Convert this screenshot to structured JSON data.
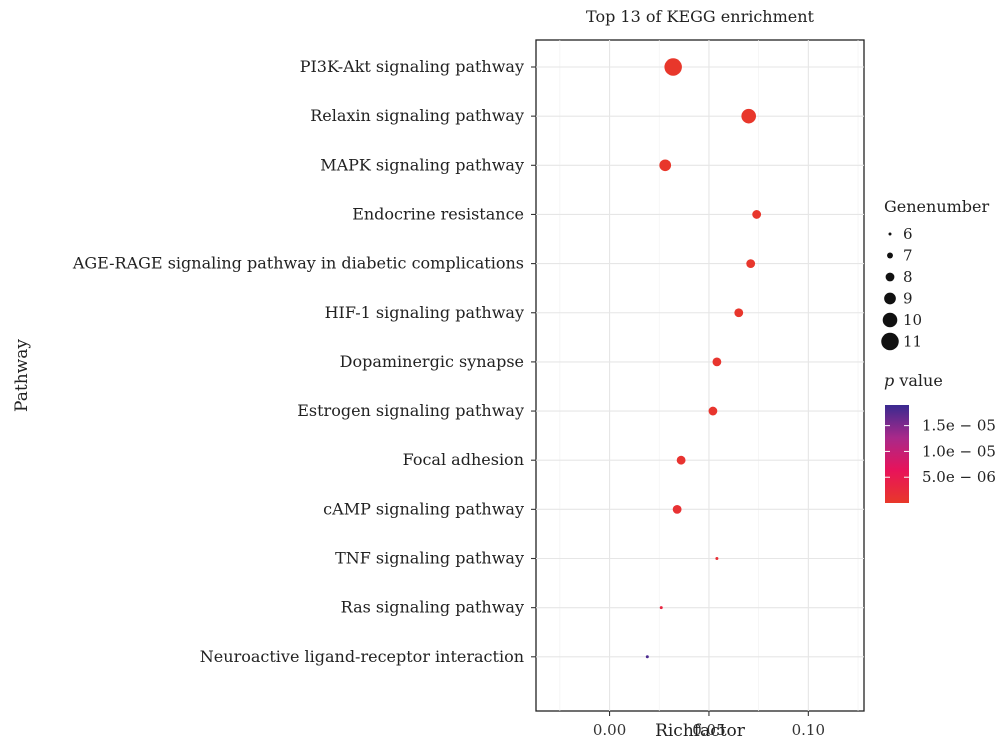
{
  "chart_data": {
    "type": "scatter",
    "title": "Top 13 of KEGG enrichment",
    "xlabel": "Richfactor",
    "ylabel": "Pathway",
    "xlim": [
      -0.037,
      0.128
    ],
    "xticks": [
      0.0,
      0.05,
      0.1
    ],
    "xtick_labels": [
      "0.00",
      "0.05",
      "0.10"
    ],
    "grid": true,
    "categories": [
      "PI3K-Akt signaling pathway",
      "Relaxin signaling pathway",
      "MAPK signaling pathway",
      "Endocrine resistance",
      "AGE-RAGE signaling pathway in diabetic complications",
      "HIF-1 signaling pathway",
      "Dopaminergic synapse",
      "Estrogen signaling pathway",
      "Focal adhesion",
      "cAMP signaling pathway",
      "TNF signaling pathway",
      "Ras signaling pathway",
      "Neuroactive ligand-receptor interaction"
    ],
    "points": [
      {
        "x": 0.032,
        "genes": 11,
        "p": 1e-07
      },
      {
        "x": 0.07,
        "genes": 10,
        "p": 1e-07
      },
      {
        "x": 0.028,
        "genes": 9,
        "p": 1e-07
      },
      {
        "x": 0.074,
        "genes": 8,
        "p": 2e-07
      },
      {
        "x": 0.071,
        "genes": 8,
        "p": 2e-07
      },
      {
        "x": 0.065,
        "genes": 8,
        "p": 3e-07
      },
      {
        "x": 0.054,
        "genes": 8,
        "p": 5e-07
      },
      {
        "x": 0.052,
        "genes": 8,
        "p": 5e-07
      },
      {
        "x": 0.036,
        "genes": 8,
        "p": 8e-07
      },
      {
        "x": 0.034,
        "genes": 8,
        "p": 1.2e-06
      },
      {
        "x": 0.054,
        "genes": 6,
        "p": 1.5e-06
      },
      {
        "x": 0.026,
        "genes": 6,
        "p": 3e-06
      },
      {
        "x": 0.019,
        "genes": 6,
        "p": 1.8e-05
      }
    ],
    "size_legend": {
      "title": "Genenumber",
      "values": [
        6,
        7,
        8,
        9,
        10,
        11
      ],
      "labels": [
        "6",
        "7",
        "8",
        "9",
        "10",
        "11"
      ]
    },
    "color_legend": {
      "title_italic": "p",
      "title_rest": " value",
      "range": [
        0,
        1.9e-05
      ],
      "breaks": [
        1.5e-05,
        1e-05,
        5e-06
      ],
      "labels": [
        "1.5e − 05",
        "1.0e − 05",
        "5.0e − 06"
      ],
      "colors": [
        "#e8382a",
        "#e8135a",
        "#a9298a",
        "#3a2a90"
      ]
    }
  }
}
